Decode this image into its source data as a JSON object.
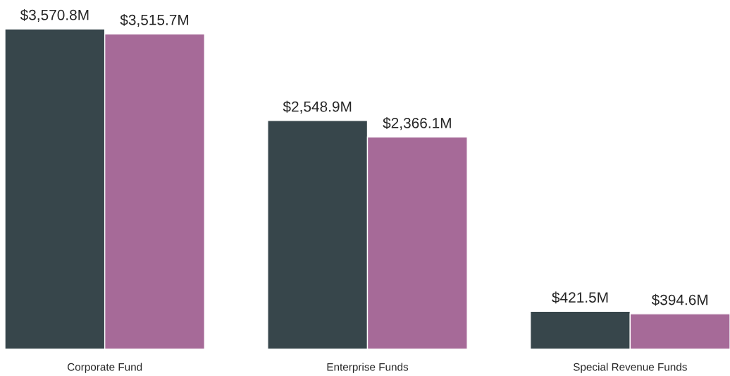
{
  "chart_data": {
    "type": "bar",
    "categories": [
      "Corporate Fund",
      "Enterprise Funds",
      "Special Revenue Funds"
    ],
    "series": [
      {
        "color": "#37464b",
        "values": [
          3570.8,
          2548.9,
          421.5
        ],
        "value_labels": [
          "$3,570.8M",
          "$2,548.9M",
          "$421.5M"
        ]
      },
      {
        "color": "#a66a98",
        "values": [
          3515.7,
          2366.1,
          394.6
        ],
        "value_labels": [
          "$3,515.7M",
          "$2,366.1M",
          "$394.6M"
        ]
      }
    ],
    "grid": false,
    "legend": false
  }
}
